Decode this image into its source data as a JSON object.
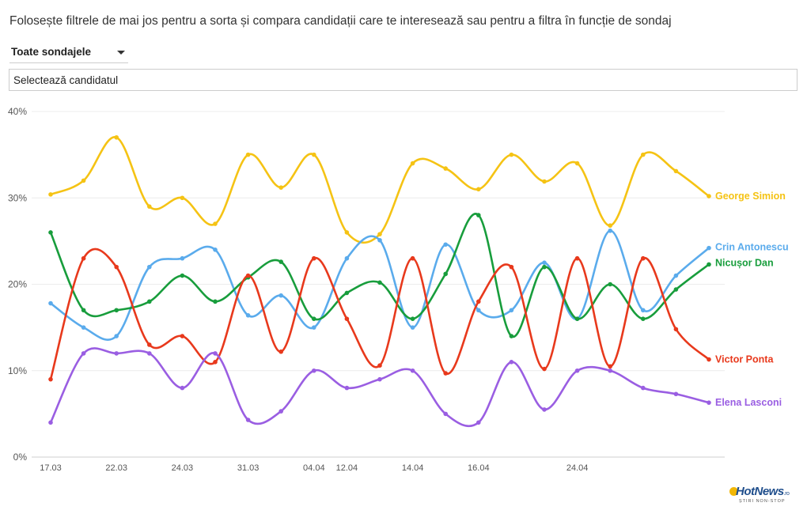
{
  "intro_text": "Folosește filtrele de mai jos pentru a sorta și compara candidații care te interesează sau pentru a filtra în funcție de sondaj",
  "filters": {
    "poll_select": "Toate sondajele",
    "candidate_placeholder": "Selectează candidatul"
  },
  "logo": {
    "brand": "HotNews",
    "tld": ".ro",
    "tagline": "ȘTIRI NON-STOP"
  },
  "chart_data": {
    "type": "line",
    "title": "",
    "xlabel": "",
    "ylabel": "",
    "ylim": [
      0,
      40
    ],
    "yticks": [
      "0%",
      "10%",
      "20%",
      "30%",
      "40%"
    ],
    "grid": true,
    "legend": "right-end labels",
    "x_points": 21,
    "x_tick_labels": [
      {
        "index": 0,
        "label": "17.03"
      },
      {
        "index": 2,
        "label": "22.03"
      },
      {
        "index": 4,
        "label": "24.03"
      },
      {
        "index": 6,
        "label": "31.03"
      },
      {
        "index": 8,
        "label": "04.04"
      },
      {
        "index": 9,
        "label": "12.04"
      },
      {
        "index": 11,
        "label": "14.04"
      },
      {
        "index": 13,
        "label": "16.04"
      },
      {
        "index": 16,
        "label": "24.04"
      }
    ],
    "series": [
      {
        "name": "George Simion",
        "color": "#f5c314",
        "values": [
          30.4,
          32,
          37,
          29,
          30,
          27,
          35,
          31.2,
          35,
          26,
          25.8,
          34,
          33.4,
          31,
          35,
          31.9,
          34,
          26.8,
          35,
          33.1,
          30.2
        ]
      },
      {
        "name": "Crin Antonescu",
        "color": "#5aabec",
        "values": [
          17.8,
          15,
          14,
          22,
          23,
          24,
          16.4,
          18.7,
          15,
          23,
          25.1,
          15,
          24.6,
          17,
          17,
          22.5,
          16,
          26.2,
          17,
          21,
          24.2
        ]
      },
      {
        "name": "Nicușor Dan",
        "color": "#189d3c",
        "values": [
          26,
          17,
          17,
          18,
          21,
          18,
          20.8,
          22.6,
          16,
          19,
          20.2,
          16,
          21.2,
          28,
          14,
          22,
          16,
          20,
          16,
          19.4,
          22.3
        ]
      },
      {
        "name": "Victor Ponta",
        "color": "#e8391c",
        "values": [
          9,
          23,
          22,
          13,
          14,
          11,
          21,
          12.2,
          23,
          16,
          10.6,
          23,
          9.7,
          18,
          22,
          10.2,
          23,
          10.5,
          23,
          14.8,
          11.3
        ]
      },
      {
        "name": "Elena Lasconi",
        "color": "#9a5ee2",
        "values": [
          4,
          12,
          12,
          12,
          8,
          12,
          4.3,
          5.3,
          10,
          8,
          9,
          10,
          5,
          4,
          11,
          5.5,
          10,
          10,
          8,
          7.3,
          6.3
        ]
      }
    ]
  }
}
